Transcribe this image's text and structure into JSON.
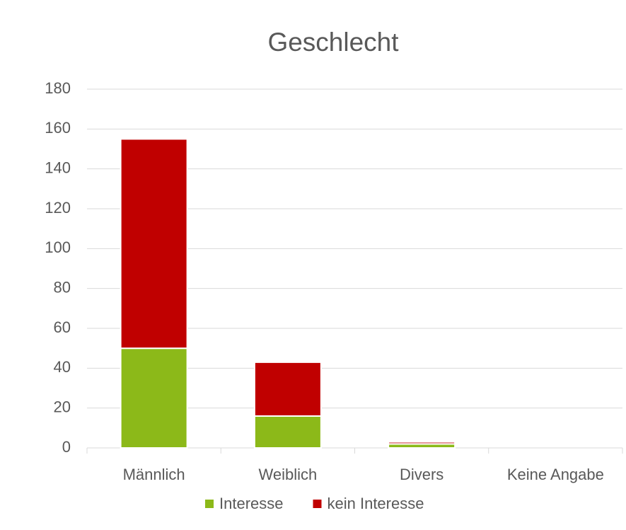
{
  "chart_data": {
    "type": "stacked_bar",
    "title": "Geschlecht",
    "categories": [
      "Männlich",
      "Weiblich",
      "Divers",
      "Keine Angabe"
    ],
    "series": [
      {
        "name": "Interesse",
        "color": "#8cb919",
        "values": [
          50,
          16,
          2,
          0
        ]
      },
      {
        "name": "kein Interesse",
        "color": "#c00000",
        "values": [
          105,
          27,
          1,
          0
        ]
      }
    ],
    "ylim": [
      0,
      180
    ],
    "yticks": [
      0,
      20,
      40,
      60,
      80,
      100,
      120,
      140,
      160,
      180
    ],
    "grid": true,
    "legend": "bottom"
  }
}
